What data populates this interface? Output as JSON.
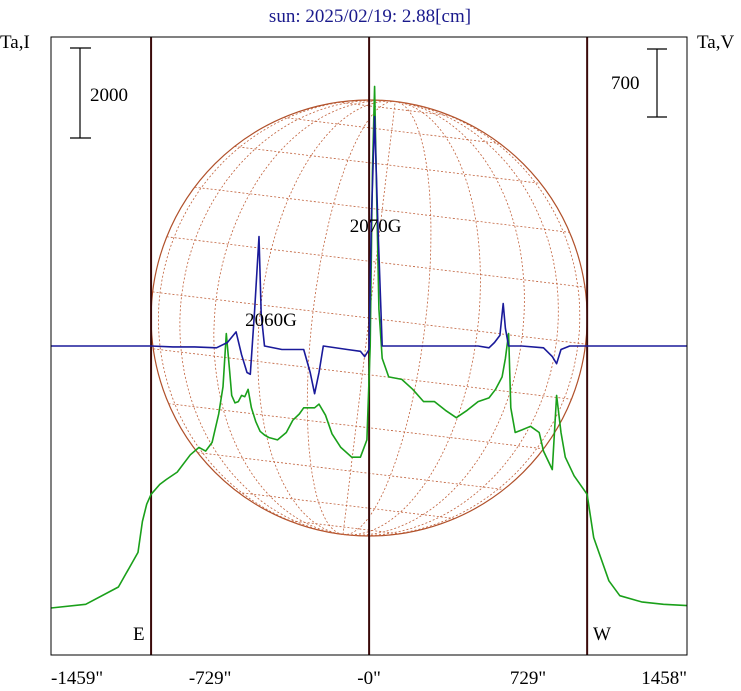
{
  "chart_data": {
    "type": "line",
    "title": "sun: 2025/02/19: 2.88[cm]",
    "ylabel_left": "Ta,I",
    "ylabel_right": "Ta,V",
    "scale_left": "2000",
    "scale_right": "700",
    "limb_labels": {
      "east": "E",
      "west": "W"
    },
    "xlim": [
      -1459,
      1458
    ],
    "xticks": [
      {
        "value": -1459,
        "label": "-1459\""
      },
      {
        "value": -729,
        "label": "-729\""
      },
      {
        "value": 0,
        "label": "-0\""
      },
      {
        "value": 729,
        "label": "729\""
      },
      {
        "value": 1458,
        "label": "1458\""
      }
    ],
    "vertical_markers": [
      -1000,
      0,
      1000
    ],
    "solar_radius": 1000,
    "annotations": [
      {
        "text": "2070G",
        "x": 30,
        "y_ref": "I"
      },
      {
        "text": "2060G",
        "x": -450,
        "y_ref": "I"
      }
    ],
    "ylim_I": [
      -1000,
      4000
    ],
    "ylim_V": [
      -1750,
      1750
    ],
    "series": [
      {
        "kind": "I",
        "color": "#1aa01a",
        "points": [
          [
            -1459,
            -620
          ],
          [
            -1300,
            -590
          ],
          [
            -1150,
            -450
          ],
          [
            -1060,
            -170
          ],
          [
            -1040,
            80
          ],
          [
            -1020,
            220
          ],
          [
            -1000,
            300
          ],
          [
            -960,
            380
          ],
          [
            -930,
            420
          ],
          [
            -880,
            480
          ],
          [
            -820,
            620
          ],
          [
            -780,
            680
          ],
          [
            -750,
            650
          ],
          [
            -720,
            720
          ],
          [
            -690,
            950
          ],
          [
            -670,
            1170
          ],
          [
            -655,
            1600
          ],
          [
            -640,
            1300
          ],
          [
            -630,
            1100
          ],
          [
            -615,
            1040
          ],
          [
            -600,
            1050
          ],
          [
            -585,
            1100
          ],
          [
            -570,
            1090
          ],
          [
            -555,
            1150
          ],
          [
            -540,
            1000
          ],
          [
            -520,
            890
          ],
          [
            -500,
            810
          ],
          [
            -480,
            780
          ],
          [
            -460,
            760
          ],
          [
            -420,
            740
          ],
          [
            -380,
            800
          ],
          [
            -350,
            900
          ],
          [
            -320,
            950
          ],
          [
            -300,
            1000
          ],
          [
            -270,
            1000
          ],
          [
            -250,
            1000
          ],
          [
            -230,
            1030
          ],
          [
            -200,
            940
          ],
          [
            -170,
            790
          ],
          [
            -130,
            680
          ],
          [
            -80,
            600
          ],
          [
            -40,
            600
          ],
          [
            -10,
            740
          ],
          [
            5,
            1500
          ],
          [
            15,
            2900
          ],
          [
            25,
            3600
          ],
          [
            35,
            2700
          ],
          [
            45,
            1800
          ],
          [
            60,
            1400
          ],
          [
            90,
            1250
          ],
          [
            150,
            1230
          ],
          [
            200,
            1150
          ],
          [
            250,
            1050
          ],
          [
            300,
            1050
          ],
          [
            350,
            980
          ],
          [
            400,
            920
          ],
          [
            450,
            980
          ],
          [
            500,
            1050
          ],
          [
            550,
            1080
          ],
          [
            580,
            1150
          ],
          [
            610,
            1250
          ],
          [
            625,
            1400
          ],
          [
            640,
            1600
          ],
          [
            650,
            1000
          ],
          [
            670,
            800
          ],
          [
            700,
            820
          ],
          [
            740,
            850
          ],
          [
            780,
            800
          ],
          [
            800,
            650
          ],
          [
            840,
            500
          ],
          [
            860,
            1100
          ],
          [
            880,
            800
          ],
          [
            900,
            600
          ],
          [
            940,
            450
          ],
          [
            1000,
            300
          ],
          [
            1030,
            -50
          ],
          [
            1060,
            -200
          ],
          [
            1100,
            -400
          ],
          [
            1150,
            -520
          ],
          [
            1250,
            -570
          ],
          [
            1350,
            -590
          ],
          [
            1458,
            -600
          ]
        ]
      },
      {
        "kind": "V",
        "color": "#1a1a9a",
        "points": [
          [
            -1459,
            0
          ],
          [
            -1100,
            0
          ],
          [
            -1000,
            0
          ],
          [
            -900,
            -5
          ],
          [
            -800,
            -5
          ],
          [
            -700,
            -10
          ],
          [
            -650,
            20
          ],
          [
            -610,
            80
          ],
          [
            -585,
            -50
          ],
          [
            -560,
            -150
          ],
          [
            -545,
            -160
          ],
          [
            -525,
            200
          ],
          [
            -505,
            620
          ],
          [
            -495,
            180
          ],
          [
            -480,
            0
          ],
          [
            -400,
            -20
          ],
          [
            -300,
            -20
          ],
          [
            -270,
            -150
          ],
          [
            -250,
            -270
          ],
          [
            -230,
            -150
          ],
          [
            -210,
            0
          ],
          [
            -100,
            -20
          ],
          [
            -40,
            -30
          ],
          [
            -20,
            -60
          ],
          [
            0,
            -20
          ],
          [
            10,
            700
          ],
          [
            25,
            1300
          ],
          [
            40,
            700
          ],
          [
            60,
            0
          ],
          [
            150,
            0
          ],
          [
            300,
            0
          ],
          [
            400,
            0
          ],
          [
            500,
            0
          ],
          [
            550,
            -10
          ],
          [
            575,
            20
          ],
          [
            600,
            60
          ],
          [
            615,
            240
          ],
          [
            625,
            100
          ],
          [
            640,
            0
          ],
          [
            700,
            0
          ],
          [
            800,
            -10
          ],
          [
            840,
            -60
          ],
          [
            860,
            -100
          ],
          [
            880,
            -20
          ],
          [
            920,
            0
          ],
          [
            1000,
            0
          ],
          [
            1458,
            0
          ]
        ]
      }
    ]
  }
}
